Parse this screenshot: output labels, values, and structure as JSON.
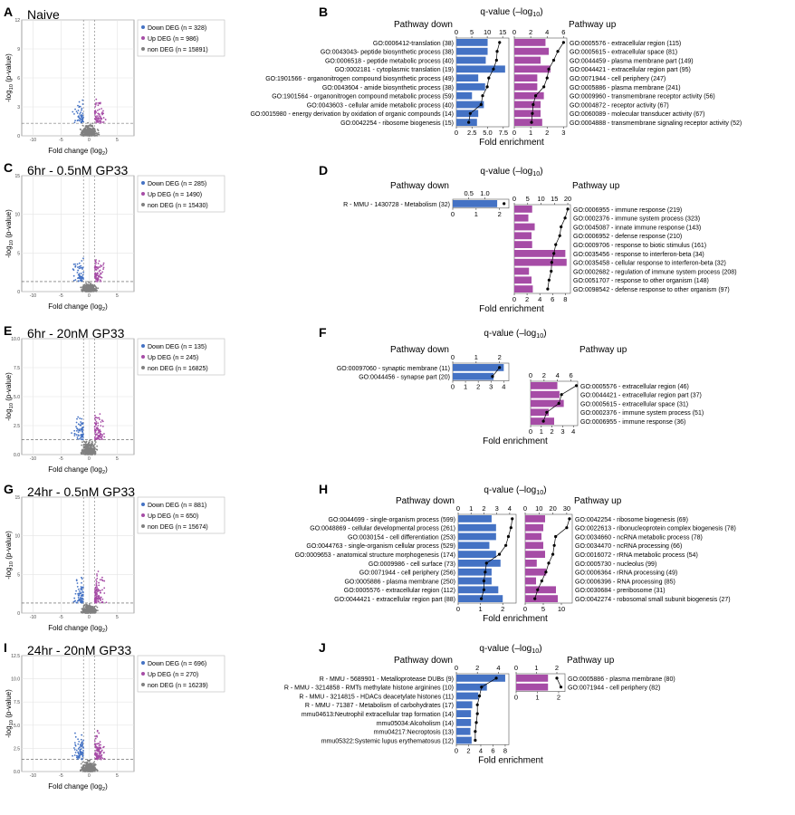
{
  "colors": {
    "down": "#4472c4",
    "up": "#a64ca6",
    "non": "#808080",
    "line": "#000000"
  },
  "axis_labels": {
    "fold_change": "Fold change (log",
    "fold_change_sub": "2",
    "pvalue_a": "-log",
    "pvalue_sub": "10",
    "pvalue_b": " (p-value)",
    "qvalue_a": "q-value (–log",
    "qvalue_sub": "10",
    "qvalue_b": ")",
    "fold_enrichment": "Fold enrichment",
    "pathway_down": "Pathway down",
    "pathway_up": "Pathway up"
  },
  "volcano_panels": [
    {
      "letter": "A",
      "title": "Naive",
      "ylim": [
        0,
        12
      ],
      "yticks": [
        "0",
        "3",
        "6",
        "9",
        "12"
      ],
      "xticks": [
        "-10",
        "-5",
        "0",
        "5"
      ],
      "legend": [
        "Down DEG (n = 328)",
        "Up DEG (n = 986)",
        "non DEG (n = 15891)"
      ]
    },
    {
      "letter": "C",
      "title": "6hr - 0.5nM GP33",
      "ylim": [
        0,
        15
      ],
      "yticks": [
        "0",
        "5",
        "10",
        "15"
      ],
      "xticks": [
        "-10",
        "-5",
        "0",
        "5"
      ],
      "legend": [
        "Down DEG (n = 285)",
        "Up DEG (n = 1490)",
        "non DEG (n = 15430)"
      ]
    },
    {
      "letter": "E",
      "title": "6hr - 20nM GP33",
      "ylim": [
        0,
        10
      ],
      "yticks": [
        "0.0",
        "2.5",
        "5.0",
        "7.5",
        "10.0"
      ],
      "xticks": [
        "-10",
        "-5",
        "0",
        "5"
      ],
      "legend": [
        "Down DEG (n = 135)",
        "Up DEG (n = 245)",
        "non DEG (n = 16825)"
      ]
    },
    {
      "letter": "G",
      "title": "24hr - 0.5nM GP33",
      "ylim": [
        0,
        15
      ],
      "yticks": [
        "0",
        "5",
        "10",
        "15"
      ],
      "xticks": [
        "-10",
        "-5",
        "0",
        "5"
      ],
      "legend": [
        "Down DEG (n = 881)",
        "Up DEG (n = 650)",
        "non DEG (n = 15674)"
      ]
    },
    {
      "letter": "I",
      "title": "24hr - 20nM GP33",
      "ylim": [
        0,
        12.5
      ],
      "yticks": [
        "0.0",
        "2.5",
        "5.0",
        "7.5",
        "10.0",
        "12.5"
      ],
      "xticks": [
        "-10",
        "-5",
        "0",
        "5"
      ],
      "legend": [
        "Down DEG (n = 696)",
        "Up DEG (n = 270)",
        "non DEG (n = 16239)"
      ]
    }
  ],
  "chart_data": [
    {
      "panel": "B",
      "type": "bar",
      "direction": "down",
      "categories": [
        "GO:0006412-translation (38)",
        "GO:0043043- peptide biosynthetic process (38)",
        "GO:0006518 - peptide metabolic process (40)",
        "GO:0002181 - cytoplasmic translation (19)",
        "GO:1901566 - organonitrogen compound biosynthetic process (49)",
        "GO:0043604 - amide biosynthetic process (38)",
        "GO:1901564 - organonitrogen compound metabolic process (59)",
        "GO:0043603 - cellular amide metabolic process (40)",
        "GO:0015980 - energy derivation by oxidation of organic compounds (14)",
        "GO:0042254 - ribosome biogenesis (15)"
      ],
      "fold_enrichment": [
        5.0,
        5.0,
        4.7,
        7.8,
        3.5,
        4.6,
        2.5,
        4.4,
        3.5,
        3.3
      ],
      "qvalue": [
        14.0,
        13.2,
        13.0,
        12.0,
        10.5,
        10.0,
        8.5,
        8.0,
        4.5,
        4.0
      ],
      "fold_ticks": [
        "0",
        "2.5",
        "5.0",
        "7.5"
      ],
      "fold_lim": [
        0,
        8.4
      ],
      "q_ticks": [
        "0",
        "5",
        "10",
        "15"
      ],
      "q_lim": [
        0,
        17
      ]
    },
    {
      "panel": "B",
      "type": "bar",
      "direction": "up",
      "categories": [
        "GO:0005576 - extracellular region (115)",
        "GO:0005615 - extracellular space (81)",
        "GO:0044459 - plasma membrane part (149)",
        "GO:0044421 - extracellular region part (95)",
        "GO:0071944 - cell periphery (247)",
        "GO:0005886 - plasma membrane (241)",
        "GO:0009960 - transmembrane receptor activity (56)",
        "GO:0004872 - receptor activity (67)",
        "GO:0060089 - molecular transducer activity (67)",
        "GO:0004888 - transmembrane signaling receptor activity (52)"
      ],
      "fold_enrichment": [
        1.9,
        2.1,
        1.6,
        2.2,
        1.4,
        1.4,
        1.8,
        1.6,
        1.6,
        1.7
      ],
      "qvalue": [
        6.0,
        5.3,
        4.8,
        4.2,
        4.0,
        3.6,
        2.6,
        2.3,
        2.2,
        2.1
      ],
      "fold_ticks": [
        "0",
        "1",
        "2",
        "3"
      ],
      "fold_lim": [
        0,
        3.2
      ],
      "q_ticks": [
        "0",
        "2",
        "4",
        "6"
      ],
      "q_lim": [
        0,
        6.4
      ]
    },
    {
      "panel": "D",
      "type": "bar",
      "direction": "down",
      "categories": [
        "R - MMU - 1430728 - Metabolism (32)"
      ],
      "fold_enrichment": [
        1.9
      ],
      "qvalue": [
        1.6
      ],
      "fold_ticks": [
        "0",
        "1",
        "2"
      ],
      "fold_lim": [
        0,
        2.4
      ],
      "q_ticks": [
        "0.5",
        "1.0"
      ],
      "q_lim": [
        0,
        1.75
      ]
    },
    {
      "panel": "D",
      "type": "bar",
      "direction": "up",
      "categories": [
        "GO:0006955 - immune response (219)",
        "GO:0002376 - immune system process (323)",
        "GO:0045087 - innate immune response (143)",
        "GO:0006952 - defense response (210)",
        "GO:0009706 - response to biotic stimulus (161)",
        "GO:0035456 - response to interferon-beta (34)",
        "GO:0035458 - cellular response to interferon-beta (32)",
        "GO:0002682 - regulation of immune system process (208)",
        "GO:0051707 - response to other organism (148)",
        "GO:0098542 - defense response to other organism (97)"
      ],
      "fold_enrichment": [
        2.8,
        2.2,
        3.2,
        2.7,
        2.8,
        8.0,
        8.2,
        2.3,
        2.7,
        2.9
      ],
      "qvalue": [
        20.0,
        19.0,
        17.5,
        17.0,
        15.5,
        14.8,
        14.0,
        13.8,
        13.0,
        12.5
      ],
      "fold_ticks": [
        "0",
        "2",
        "4",
        "6",
        "8"
      ],
      "fold_lim": [
        0,
        8.8
      ],
      "q_ticks": [
        "0",
        "5",
        "10",
        "15",
        "20"
      ],
      "q_lim": [
        0,
        21
      ]
    },
    {
      "panel": "F",
      "type": "bar",
      "direction": "down",
      "categories": [
        "GO:00097060 - synaptic membrane (11)",
        "GO:0044456 - synapse part (20)"
      ],
      "fold_enrichment": [
        4.0,
        3.2
      ],
      "qvalue": [
        2.0,
        1.7
      ],
      "fold_ticks": [
        "0",
        "1",
        "2",
        "3",
        "4"
      ],
      "fold_lim": [
        0,
        4.4
      ],
      "q_ticks": [
        "0",
        "1",
        "2"
      ],
      "q_lim": [
        0,
        2.4
      ]
    },
    {
      "panel": "F",
      "type": "bar",
      "direction": "up",
      "categories": [
        "GO:0005576 - extracellular region (46)",
        "GO:0044421 - extracellular region part (37)",
        "GO:0005615 - extracellular space (31)",
        "GO:0002376 - immune system process (51)",
        "GO:0006955 - immune response (36)"
      ],
      "fold_enrichment": [
        2.5,
        2.7,
        3.1,
        1.7,
        2.2
      ],
      "qvalue": [
        6.8,
        4.6,
        4.2,
        2.4,
        1.9
      ],
      "fold_ticks": [
        "0",
        "1",
        "2",
        "3",
        "4"
      ],
      "fold_lim": [
        0,
        4.4
      ],
      "q_ticks": [
        "0",
        "2",
        "4",
        "6"
      ],
      "q_lim": [
        0,
        7
      ]
    },
    {
      "panel": "H",
      "type": "bar",
      "direction": "down",
      "categories": [
        "GO:0044699 - single-organism process (599)",
        "GO:0048869 - cellular developmental process (261)",
        "GO:0030154 - cell differentiation (253)",
        "GO:0044763 - single-organism cellular process (529)",
        "GO:0009653 - anatomical structure morphogenesis (174)",
        "GO:0009986 - cell surface (73)",
        "GO:0071944 - cell periphery (256)",
        "GO:0005886 - plasma membrane (250)",
        "GO:0005576 - extracellular region (112)",
        "GO:0044421 - extracellular region part (88)"
      ],
      "fold_enrichment": [
        1.5,
        1.7,
        1.7,
        1.4,
        1.7,
        1.9,
        1.5,
        1.5,
        1.8,
        2.0
      ],
      "qvalue": [
        4.2,
        4.1,
        3.9,
        3.7,
        3.2,
        2.2,
        2.1,
        2.0,
        2.0,
        1.8
      ],
      "fold_ticks": [
        "0",
        "1",
        "2"
      ],
      "fold_lim": [
        0,
        2.6
      ],
      "q_ticks": [
        "0",
        "1",
        "2",
        "3",
        "4"
      ],
      "q_lim": [
        0,
        4.5
      ]
    },
    {
      "panel": "H",
      "type": "bar",
      "direction": "up",
      "categories": [
        "GO:0042254 - ribosome biogenesis (69)",
        "GO:0022613 - ribonucleoprotein complex biogenesis (78)",
        "GO:0034660 - ncRNA metabolic process (78)",
        "GO:0034470 - ncRNA processing (66)",
        "GO:0016072 - rRNA metabolic process (54)",
        "GO:0005730 - nucleolus (99)",
        "GO:0006364 - rRNA processing (49)",
        "GO:0006396 - RNA processing (85)",
        "GO:0030684 - preribosome (31)",
        "GO:0042274 - robosomal small subunit biogenesis (27)"
      ],
      "fold_enrichment": [
        5.5,
        5.0,
        4.5,
        5.0,
        5.5,
        3.2,
        5.8,
        3.0,
        8.5,
        9.0
      ],
      "qvalue": [
        32.0,
        30.0,
        22.0,
        21.0,
        20.0,
        17.0,
        15.0,
        12.0,
        9.0,
        7.0
      ],
      "fold_ticks": [
        "0",
        "5",
        "10"
      ],
      "fold_lim": [
        0,
        13
      ],
      "q_ticks": [
        "0",
        "10",
        "20",
        "30"
      ],
      "q_lim": [
        0,
        34
      ]
    },
    {
      "panel": "J",
      "type": "bar",
      "direction": "down",
      "categories": [
        "R - MMU - 5689901 - Metalloprotease DUBs (9)",
        "R - MMU - 3214858 - RMTs methylate histone arginines (10)",
        "R - MMU - 3214815 - HDACs deacetylate histones (11)",
        "R - MMU - 71387 - Metabolism of carbohydrates (17)",
        "mmu04613:Neutrophil extracellular trap formation (14)",
        "mmu05034:Alcoholism (14)",
        "mmu04217:Necroptosis (13)",
        "mmu05322:Systemic lupus erythematosus (12)"
      ],
      "fold_enrichment": [
        8.0,
        5.0,
        3.6,
        2.6,
        2.4,
        2.4,
        2.3,
        2.5
      ],
      "qvalue": [
        3.8,
        2.4,
        2.2,
        2.0,
        2.0,
        1.9,
        1.8,
        1.8
      ],
      "fold_ticks": [
        "0",
        "2",
        "4",
        "6",
        "8"
      ],
      "fold_lim": [
        0,
        8.6
      ],
      "q_ticks": [
        "0",
        "2",
        "4"
      ],
      "q_lim": [
        0,
        5
      ]
    },
    {
      "panel": "J",
      "type": "bar",
      "direction": "up",
      "categories": [
        "GO:0005886 - plasma membrane (80)",
        "GO:0071944 - cell periphery (82)"
      ],
      "fold_enrichment": [
        1.5,
        1.5
      ],
      "qvalue": [
        2.0,
        2.2
      ],
      "fold_ticks": [
        "0",
        "1",
        "2"
      ],
      "fold_lim": [
        0,
        2.3
      ],
      "q_ticks": [
        "0",
        "1",
        "2"
      ],
      "q_lim": [
        0,
        2.4
      ]
    }
  ]
}
